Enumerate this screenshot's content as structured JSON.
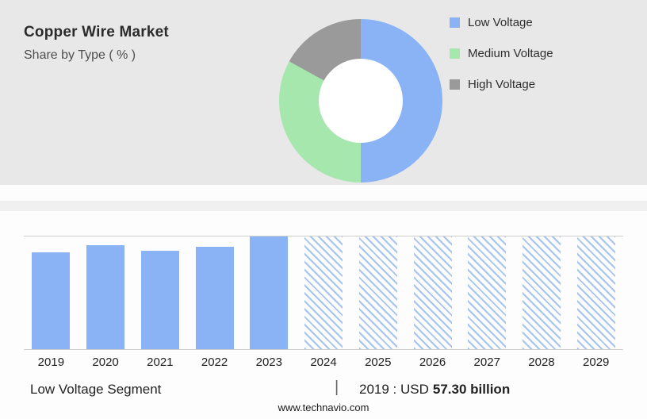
{
  "header": {
    "title": "Copper Wire Market",
    "subtitle": "Share by Type ( % )"
  },
  "colors": {
    "low_voltage": "#8ab3f5",
    "medium_voltage": "#a6e7ae",
    "high_voltage": "#9a9a9a",
    "bar": "#8ab3f5",
    "hatch": "#a6c4ef",
    "panel_bg": "#e8e8e8"
  },
  "chart_data": [
    {
      "type": "pie",
      "title": "Share by Type ( % )",
      "labels": [
        "Low Voltage",
        "Medium Voltage",
        "High Voltage"
      ],
      "values": [
        50,
        33,
        17
      ],
      "colors": [
        "#8ab3f5",
        "#a6e7ae",
        "#9a9a9a"
      ],
      "donut": true,
      "legend_position": "right",
      "note": "segment shares estimated from donut arc angles"
    },
    {
      "type": "bar",
      "title": "Low Voltage Segment",
      "categories": [
        "2019",
        "2020",
        "2021",
        "2022",
        "2023",
        "2024",
        "2025",
        "2026",
        "2027",
        "2028",
        "2029"
      ],
      "values": [
        86,
        92,
        87,
        91,
        100,
        100,
        100,
        100,
        100,
        100,
        100
      ],
      "values_unit": "relative bar height, % of tallest bar (unlabeled axis)",
      "forecast_from": "2024",
      "forecast_style": "hatched",
      "xlabel": "",
      "ylabel": "",
      "grid": false,
      "annotation": "2019 : USD 57.30 billion"
    }
  ],
  "footer": {
    "segment_label": "Low Voltage Segment",
    "separator": "|",
    "annotation_prefix": "2019 : USD",
    "annotation_value": "57.30 billion",
    "website": "www.technavio.com"
  }
}
